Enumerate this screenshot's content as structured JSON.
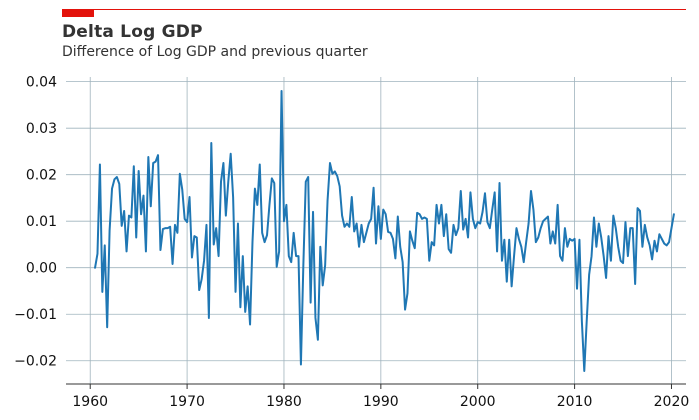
{
  "colors": {
    "accent": "#e3120b",
    "line": "#1f77b4",
    "grid": "#9fb3bd",
    "axis": "#333333"
  },
  "chart_data": {
    "type": "line",
    "title": "Delta Log GDP",
    "subtitle": "Difference of Log GDP and previous quarter",
    "xlabel": "",
    "ylabel": "",
    "xlim": [
      1957.5,
      2021.5
    ],
    "ylim": [
      -0.025,
      0.041
    ],
    "xticks": [
      1960,
      1970,
      1980,
      1990,
      2000,
      2010,
      2020
    ],
    "xtick_labels": [
      "1960",
      "1970",
      "1980",
      "1990",
      "2000",
      "2010",
      "2020"
    ],
    "yticks": [
      -0.02,
      -0.01,
      0.0,
      0.01,
      0.02,
      0.03,
      0.04
    ],
    "ytick_labels": [
      "−0.02",
      "−0.01",
      "0.00",
      "0.01",
      "0.02",
      "0.03",
      "0.04"
    ],
    "grid": true,
    "series": [
      {
        "x_start": 1960.5,
        "x_step": 0.25,
        "values": [
          0.0,
          0.003,
          0.0222,
          -0.0052,
          0.0048,
          -0.0128,
          0.008,
          0.017,
          0.019,
          0.0195,
          0.018,
          0.009,
          0.0122,
          0.0035,
          0.0112,
          0.0108,
          0.0218,
          0.0065,
          0.0208,
          0.0115,
          0.0155,
          0.0035,
          0.0238,
          0.0132,
          0.0225,
          0.0228,
          0.0242,
          0.0038,
          0.0083,
          0.0085,
          0.0085,
          0.0088,
          0.0008,
          0.0092,
          0.0075,
          0.0202,
          0.0168,
          0.0105,
          0.0098,
          0.0152,
          0.0022,
          0.0068,
          0.0065,
          -0.0048,
          -0.0025,
          0.0015,
          0.0092,
          -0.0108,
          0.0268,
          0.005,
          0.0085,
          0.0025,
          0.0185,
          0.0225,
          0.0112,
          0.0185,
          0.0245,
          0.0152,
          -0.0052,
          0.0095,
          -0.0085,
          0.0025,
          -0.0095,
          -0.004,
          -0.0122,
          0.0055,
          0.017,
          0.0135,
          0.0222,
          0.0075,
          0.0055,
          0.007,
          0.0135,
          0.0192,
          0.0182,
          0.0002,
          0.0035,
          0.038,
          0.01,
          0.0135,
          0.0025,
          0.0012,
          0.0075,
          0.0025,
          0.0025,
          -0.0208,
          0.0005,
          0.0185,
          0.0195,
          -0.0075,
          0.012,
          -0.0108,
          -0.0155,
          0.0045,
          -0.0038,
          0.0005,
          0.0145,
          0.0225,
          0.0202,
          0.0207,
          0.0197,
          0.0175,
          0.0112,
          0.0088,
          0.0095,
          0.0088,
          0.0152,
          0.0078,
          0.0095,
          0.0045,
          0.0092,
          0.0055,
          0.0075,
          0.0095,
          0.0105,
          0.0172,
          0.0052,
          0.0132,
          0.0062,
          0.0125,
          0.0115,
          0.0077,
          0.0075,
          0.0062,
          0.002,
          0.011,
          0.0045,
          0.0012,
          -0.009,
          -0.0055,
          0.0078,
          0.0058,
          0.0042,
          0.0118,
          0.0115,
          0.0105,
          0.0108,
          0.0105,
          0.0015,
          0.0055,
          0.0048,
          0.0135,
          0.0095,
          0.0135,
          0.0068,
          0.0115,
          0.004,
          0.0032,
          0.0092,
          0.007,
          0.0085,
          0.0165,
          0.0082,
          0.0105,
          0.0065,
          0.0162,
          0.0105,
          0.0085,
          0.0098,
          0.0095,
          0.012,
          0.016,
          0.0098,
          0.0085,
          0.0125,
          0.0162,
          0.0035,
          0.0182,
          0.0015,
          0.006,
          -0.003,
          0.006,
          -0.004,
          0.0025,
          0.0085,
          0.0062,
          0.0045,
          0.0012,
          0.0055,
          0.0095,
          0.0165,
          0.0125,
          0.0055,
          0.0065,
          0.0085,
          0.01,
          0.0105,
          0.011,
          0.0052,
          0.0078,
          0.0052,
          0.0135,
          0.0025,
          0.0015,
          0.0085,
          0.0045,
          0.0062,
          0.0058,
          0.0062,
          -0.0045,
          0.006,
          -0.0115,
          -0.0222,
          -0.0115,
          -0.0015,
          0.0025,
          0.0108,
          0.0045,
          0.0095,
          0.0065,
          0.0025,
          -0.0022,
          0.0068,
          0.0015,
          0.0112,
          0.0085,
          0.0045,
          0.0015,
          0.001,
          0.0098,
          0.0025,
          0.0085,
          0.0085,
          -0.0035,
          0.0128,
          0.0122,
          0.0045,
          0.0092,
          0.0065,
          0.0048,
          0.0018,
          0.0058,
          0.0035,
          0.0072,
          0.0062,
          0.0052,
          0.0048,
          0.0055,
          0.0085,
          0.0115
        ]
      }
    ]
  }
}
